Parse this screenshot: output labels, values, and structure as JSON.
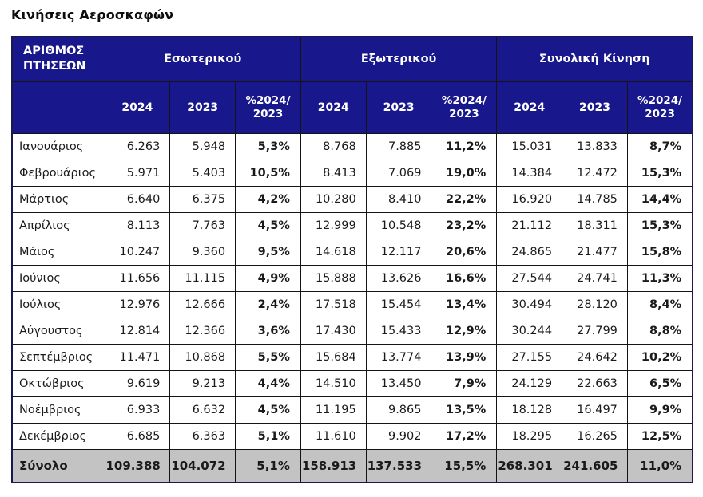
{
  "page": {
    "title": "Κινήσεις Αεροσκαφών"
  },
  "colors": {
    "header_bg": "#18188C",
    "header_text": "#FFFFFF",
    "total_bg": "#C3C3C3",
    "total_text": "#2121D6",
    "data_text": "#1A1A1A",
    "border": "#141414"
  },
  "table": {
    "corner_header": "ΑΡΙΘΜΟΣ ΠΤΗΣΕΩΝ",
    "groups": [
      {
        "label": "Εσωτερικού",
        "columns": [
          "2024",
          "2023",
          "%2024/ 2023"
        ]
      },
      {
        "label": "Εξωτερικού",
        "columns": [
          "2024",
          "2023",
          "%2024/ 2023"
        ]
      },
      {
        "label": "Συνολική Κίνηση",
        "columns": [
          "2024",
          "2023",
          "%2024/ 2023"
        ]
      }
    ],
    "rows": [
      {
        "month": "Ιανουάριος",
        "values": [
          "6.263",
          "5.948",
          "5,3%",
          "8.768",
          "7.885",
          "11,2%",
          "15.031",
          "13.833",
          "8,7%"
        ]
      },
      {
        "month": "Φεβρουάριος",
        "values": [
          "5.971",
          "5.403",
          "10,5%",
          "8.413",
          "7.069",
          "19,0%",
          "14.384",
          "12.472",
          "15,3%"
        ]
      },
      {
        "month": "Μάρτιος",
        "values": [
          "6.640",
          "6.375",
          "4,2%",
          "10.280",
          "8.410",
          "22,2%",
          "16.920",
          "14.785",
          "14,4%"
        ]
      },
      {
        "month": "Απρίλιος",
        "values": [
          "8.113",
          "7.763",
          "4,5%",
          "12.999",
          "10.548",
          "23,2%",
          "21.112",
          "18.311",
          "15,3%"
        ]
      },
      {
        "month": "Μάιος",
        "values": [
          "10.247",
          "9.360",
          "9,5%",
          "14.618",
          "12.117",
          "20,6%",
          "24.865",
          "21.477",
          "15,8%"
        ]
      },
      {
        "month": "Ιούνιος",
        "values": [
          "11.656",
          "11.115",
          "4,9%",
          "15.888",
          "13.626",
          "16,6%",
          "27.544",
          "24.741",
          "11,3%"
        ]
      },
      {
        "month": "Ιούλιος",
        "values": [
          "12.976",
          "12.666",
          "2,4%",
          "17.518",
          "15.454",
          "13,4%",
          "30.494",
          "28.120",
          "8,4%"
        ]
      },
      {
        "month": "Αύγουστος",
        "values": [
          "12.814",
          "12.366",
          "3,6%",
          "17.430",
          "15.433",
          "12,9%",
          "30.244",
          "27.799",
          "8,8%"
        ]
      },
      {
        "month": "Σεπτέμβριος",
        "values": [
          "11.471",
          "10.868",
          "5,5%",
          "15.684",
          "13.774",
          "13,9%",
          "27.155",
          "24.642",
          "10,2%"
        ]
      },
      {
        "month": "Οκτώβριος",
        "values": [
          "9.619",
          "9.213",
          "4,4%",
          "14.510",
          "13.450",
          "7,9%",
          "24.129",
          "22.663",
          "6,5%"
        ]
      },
      {
        "month": "Νοέμβριος",
        "values": [
          "6.933",
          "6.632",
          "4,5%",
          "11.195",
          "9.865",
          "13,5%",
          "18.128",
          "16.497",
          "9,9%"
        ]
      },
      {
        "month": "Δεκέμβριος",
        "values": [
          "6.685",
          "6.363",
          "5,1%",
          "11.610",
          "9.902",
          "17,2%",
          "18.295",
          "16.265",
          "12,5%"
        ]
      }
    ],
    "total": {
      "label": "Σύνολο",
      "values": [
        "109.388",
        "104.072",
        "5,1%",
        "158.913",
        "137.533",
        "15,5%",
        "268.301",
        "241.605",
        "11,0%"
      ]
    }
  }
}
